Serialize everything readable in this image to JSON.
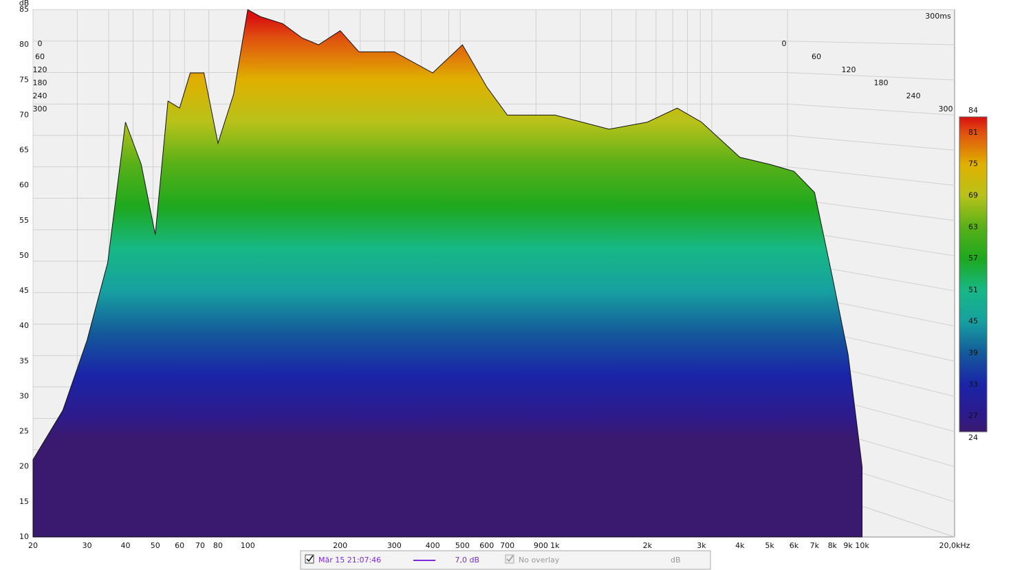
{
  "chart_data": {
    "type": "waterfall",
    "y_label": "dB",
    "ylim": [
      10,
      85
    ],
    "yticks": [
      10,
      15,
      20,
      25,
      30,
      35,
      40,
      45,
      50,
      55,
      60,
      65,
      70,
      75,
      80,
      85
    ],
    "xlim": [
      20,
      20000
    ],
    "x_log": true,
    "xticks": [
      20,
      30,
      40,
      50,
      60,
      70,
      80,
      100,
      200,
      300,
      400,
      500,
      600,
      700,
      900,
      {
        "value": 1000,
        "label": "1k"
      },
      {
        "value": 2000,
        "label": "2k"
      },
      {
        "value": 3000,
        "label": "3k"
      },
      {
        "value": 4000,
        "label": "4k"
      },
      {
        "value": 5000,
        "label": "5k"
      },
      {
        "value": 6000,
        "label": "6k"
      },
      {
        "value": 7000,
        "label": "7k"
      },
      {
        "value": 8000,
        "label": "8k"
      },
      {
        "value": 9000,
        "label": "9k"
      },
      {
        "value": 10000,
        "label": "10k"
      },
      {
        "value": 20000,
        "label": "20,0kHz"
      }
    ],
    "time_label": "300ms",
    "tlim": [
      0,
      300
    ],
    "time_ticks": [
      0,
      60,
      120,
      180,
      240,
      300
    ],
    "grid": true,
    "x": [
      20,
      25,
      30,
      35,
      40,
      45,
      50,
      55,
      60,
      65,
      72,
      80,
      90,
      100,
      110,
      130,
      150,
      170,
      200,
      230,
      300,
      400,
      500,
      600,
      700,
      1000,
      1500,
      2000,
      2500,
      3000,
      4000,
      5000,
      6000,
      7000,
      8000,
      9000,
      10000
    ],
    "values": [
      21,
      28,
      38,
      49,
      69,
      63,
      53,
      72,
      71,
      76,
      76,
      66,
      73,
      85,
      84,
      83,
      81,
      80,
      82,
      79,
      79,
      76,
      80,
      74,
      70,
      70,
      68,
      69,
      71,
      69,
      64,
      63,
      62,
      59,
      47,
      36,
      20
    ],
    "colorbar": {
      "clim": [
        24,
        84
      ],
      "ticks": [
        24,
        27,
        33,
        39,
        45,
        51,
        57,
        63,
        69,
        75,
        81,
        84
      ],
      "colors": [
        "#3a1a6e",
        "#2e1a8a",
        "#1a24a8",
        "#145a9a",
        "#17a0a0",
        "#17b886",
        "#1ea81e",
        "#58b018",
        "#b8c21a",
        "#e0b000",
        "#e05010",
        "#d81010"
      ]
    },
    "legend": {
      "date": "Mär 15 21:07:46",
      "smoothing": "7,0 dB",
      "overlay": "No overlay",
      "unit": "dB",
      "color": "#7a2ad8"
    }
  }
}
